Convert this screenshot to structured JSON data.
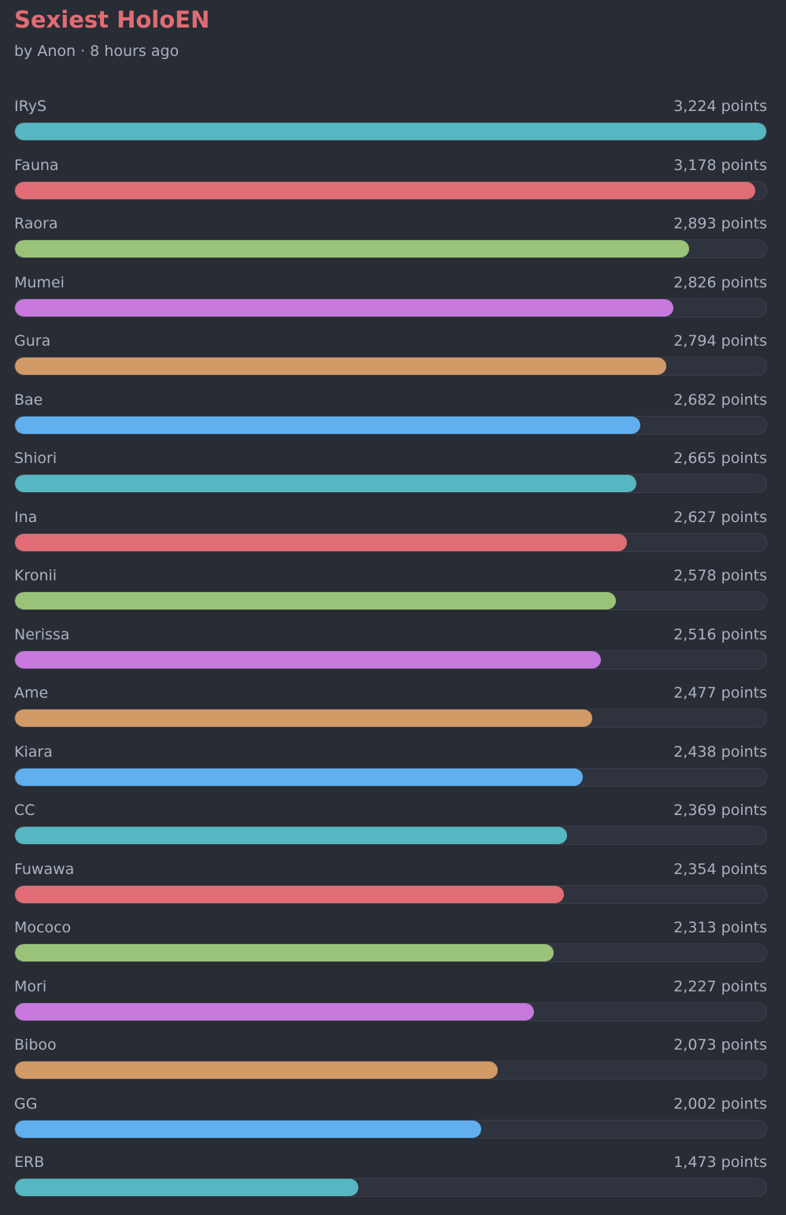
{
  "poll": {
    "title": "Sexiest HoloEN",
    "meta": "by Anon · 8 hours ago"
  },
  "colors": {
    "background": "#282c34",
    "title": "#e06c75",
    "text": "#abb2bf",
    "track": "#2f333d",
    "palette": [
      "#56b6c2",
      "#e06c75",
      "#98c379",
      "#c678dd",
      "#d19a66",
      "#61afef"
    ]
  },
  "chart_data": {
    "type": "bar",
    "orientation": "horizontal",
    "title": "Sexiest HoloEN",
    "unit": "points",
    "max": 3224,
    "categories": [
      "IRyS",
      "Fauna",
      "Raora",
      "Mumei",
      "Gura",
      "Bae",
      "Shiori",
      "Ina",
      "Kronii",
      "Nerissa",
      "Ame",
      "Kiara",
      "CC",
      "Fuwawa",
      "Mococo",
      "Mori",
      "Biboo",
      "GG",
      "ERB"
    ],
    "values": [
      3224,
      3178,
      2893,
      2826,
      2794,
      2682,
      2665,
      2627,
      2578,
      2516,
      2477,
      2438,
      2369,
      2354,
      2313,
      2227,
      2073,
      2002,
      1473
    ],
    "labels": [
      "3,224 points",
      "3,178 points",
      "2,893 points",
      "2,826 points",
      "2,794 points",
      "2,682 points",
      "2,665 points",
      "2,627 points",
      "2,578 points",
      "2,516 points",
      "2,477 points",
      "2,438 points",
      "2,369 points",
      "2,354 points",
      "2,313 points",
      "2,227 points",
      "2,073 points",
      "2,002 points",
      "1,473 points"
    ],
    "colors": [
      "#56b6c2",
      "#e06c75",
      "#98c379",
      "#c678dd",
      "#d19a66",
      "#61afef",
      "#56b6c2",
      "#e06c75",
      "#98c379",
      "#c678dd",
      "#d19a66",
      "#61afef",
      "#56b6c2",
      "#e06c75",
      "#98c379",
      "#c678dd",
      "#d19a66",
      "#61afef",
      "#56b6c2"
    ]
  }
}
